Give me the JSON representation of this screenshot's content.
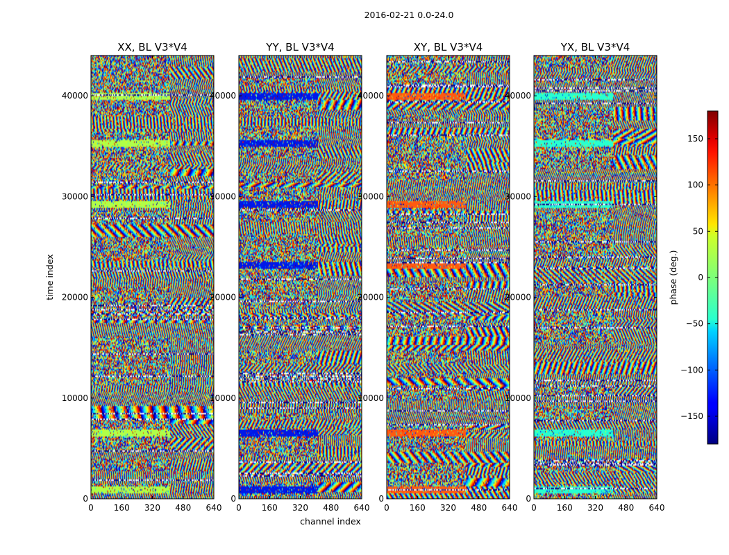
{
  "suptitle": "2016-02-21 0.0-24.0",
  "chart_data": [
    {
      "type": "heatmap",
      "title": "XX, BL V3*V4",
      "x_label": "",
      "y_label": "time index",
      "x_ticks": [
        0,
        160,
        320,
        480,
        640
      ],
      "y_ticks": [
        0,
        10000,
        20000,
        30000,
        40000
      ],
      "xlim": [
        0,
        640
      ],
      "ylim": [
        0,
        44000
      ],
      "flagged_band_color": "#b0ff48",
      "flagged_band_centers": [
        1000,
        6600,
        29300,
        35300,
        40000
      ]
    },
    {
      "type": "heatmap",
      "title": "YY, BL V3*V4",
      "x_label": "channel index",
      "y_label": "",
      "x_ticks": [
        0,
        160,
        320,
        480,
        640
      ],
      "y_ticks": [
        0,
        10000,
        20000,
        30000,
        40000
      ],
      "xlim": [
        0,
        640
      ],
      "ylim": [
        0,
        44000
      ],
      "flagged_band_color": "#0018e8",
      "flagged_band_centers": [
        1000,
        6600,
        23200,
        29300,
        35300,
        40000
      ]
    },
    {
      "type": "heatmap",
      "title": "XY, BL V3*V4",
      "x_label": "",
      "y_label": "",
      "x_ticks": [
        0,
        160,
        320,
        480,
        640
      ],
      "y_ticks": [
        0,
        10000,
        20000,
        30000,
        40000
      ],
      "xlim": [
        0,
        640
      ],
      "ylim": [
        0,
        44000
      ],
      "flagged_band_color": "#ff5a10",
      "flagged_band_centers": [
        1000,
        6600,
        23200,
        29300,
        40000
      ]
    },
    {
      "type": "heatmap",
      "title": "YX, BL V3*V4",
      "x_label": "",
      "y_label": "",
      "x_ticks": [
        0,
        160,
        320,
        480,
        640
      ],
      "y_ticks": [
        0,
        10000,
        20000,
        30000,
        40000
      ],
      "xlim": [
        0,
        640
      ],
      "ylim": [
        0,
        44000
      ],
      "flagged_band_color": "#28ffd0",
      "flagged_band_centers": [
        1000,
        6600,
        29300,
        35300,
        40000
      ]
    }
  ],
  "colorbar": {
    "label": "phase (deg.)",
    "ticks": [
      150,
      100,
      50,
      0,
      -50,
      -100,
      -150
    ],
    "tick_labels": [
      "150",
      "100",
      "50",
      "0",
      "−50",
      "−100",
      "−150"
    ],
    "range": [
      -180,
      180
    ],
    "colormap": "jet"
  }
}
